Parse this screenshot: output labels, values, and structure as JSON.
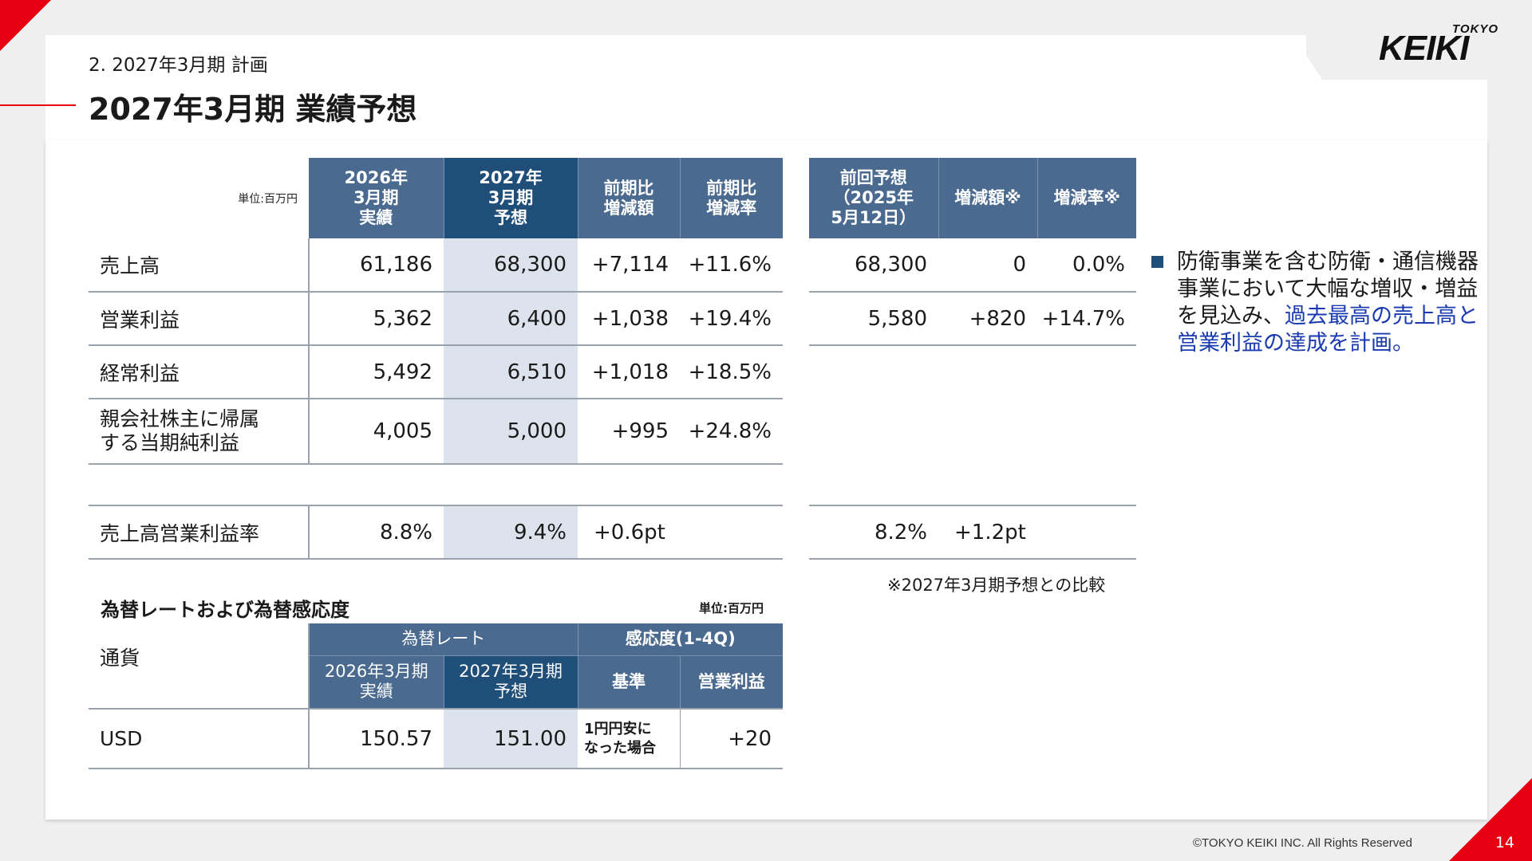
{
  "header": {
    "subtitle": "2.  2027年3月期  計画",
    "title": "2027年3月期   業績予想"
  },
  "logo": {
    "tokyo": "TOKYO",
    "keiki": "KEIKI"
  },
  "main_table": {
    "unit": "単位:百万円",
    "col_headers": [
      "2026年\n3月期\n実績",
      "2027年\n3月期\n予想",
      "前期比\n増減額",
      "前期比\n増減率"
    ],
    "rows": [
      {
        "label": "売上高",
        "values": [
          "61,186",
          "68,300",
          "+7,114",
          "+11.6%"
        ]
      },
      {
        "label": "営業利益",
        "values": [
          "5,362",
          "6,400",
          "+1,038",
          "+19.4%"
        ]
      },
      {
        "label": "経常利益",
        "values": [
          "5,492",
          "6,510",
          "+1,018",
          "+18.5%"
        ]
      },
      {
        "label": "親会社株主に帰属\nする当期純利益",
        "values": [
          "4,005",
          "5,000",
          "+995",
          "+24.8%"
        ]
      }
    ],
    "ratio_row": {
      "label": "売上高営業利益率",
      "values": [
        "8.8%",
        "9.4%",
        "+0.6pt",
        ""
      ]
    }
  },
  "prev_table": {
    "col_headers": [
      "前回予想\n（2025年\n5月12日）",
      "増減額※",
      "増減率※"
    ],
    "rows": [
      {
        "values": [
          "68,300",
          "0",
          "0.0%"
        ]
      },
      {
        "values": [
          "5,580",
          "+820",
          "+14.7%"
        ]
      }
    ],
    "ratio_row": {
      "values": [
        "8.2%",
        "+1.2pt",
        ""
      ]
    },
    "footnote": "※2027年3月期予想との比較"
  },
  "fx": {
    "title": "為替レートおよび為替感応度",
    "unit": "単位:百万円",
    "currency_header": "通貨",
    "rate_header": "為替レート",
    "sens_header": "感応度(1-4Q)",
    "rate_cols": [
      "2026年3月期\n実績",
      "2027年3月期\n予想"
    ],
    "sens_cols": [
      "基準",
      "営業利益"
    ],
    "row": {
      "currency": "USD",
      "actual": "150.57",
      "forecast": "151.00",
      "basis": "1円円安に\nなった場合",
      "op": "+20"
    }
  },
  "bullet": {
    "text_normal": "防衛事業を含む防衛・通信機器事業において大幅な増収・増益を見込み、",
    "text_highlight": "過去最高の売上高と営業利益の達成を計画。"
  },
  "footer": {
    "copyright": "©TOKYO KEIKI INC. All Rights Reserved",
    "page": "14"
  },
  "colors": {
    "accent_red": "#e60012",
    "header_blue": "#4a6a8f",
    "header_dark": "#1f4e79",
    "shade": "#dde3ec",
    "highlight": "#1a3ab0"
  }
}
